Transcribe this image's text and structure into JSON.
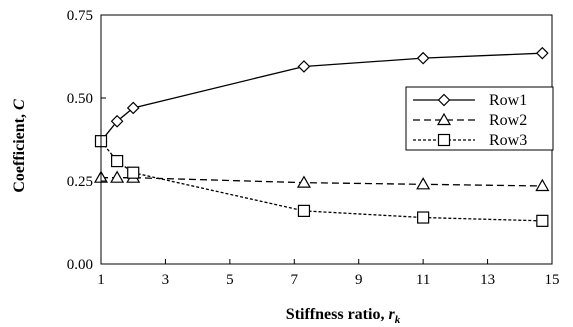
{
  "chart_data": {
    "type": "line",
    "xlabel": "Stiffness ratio, ",
    "xlabel_var": "r",
    "xlabel_sub": "k",
    "ylabel": "Coefficient, ",
    "ylabel_var": "C",
    "xlim": [
      1,
      15
    ],
    "ylim": [
      0,
      0.75
    ],
    "xticks": [
      1,
      3,
      5,
      7,
      9,
      11,
      13,
      15
    ],
    "xtick_labels": [
      "1",
      "3",
      "5",
      "7",
      "9",
      "11",
      "13",
      "15"
    ],
    "yticks": [
      0,
      0.25,
      0.5,
      0.75
    ],
    "ytick_labels": [
      "0.00",
      "0.25",
      "0.50",
      "0.75"
    ],
    "grid": false,
    "legend_position": "right",
    "series": [
      {
        "name": "Row1",
        "marker": "diamond",
        "dash": "solid",
        "x": [
          1,
          1.5,
          2,
          7.3,
          11,
          14.7
        ],
        "y": [
          0.37,
          0.43,
          0.47,
          0.595,
          0.62,
          0.635
        ]
      },
      {
        "name": "Row2",
        "marker": "triangle",
        "dash": "dashed",
        "x": [
          1,
          1.5,
          2,
          7.3,
          11,
          14.7
        ],
        "y": [
          0.26,
          0.26,
          0.26,
          0.245,
          0.24,
          0.235
        ]
      },
      {
        "name": "Row3",
        "marker": "square",
        "dash": "dotted",
        "x": [
          1,
          1.5,
          2,
          7.3,
          11,
          14.7
        ],
        "y": [
          0.37,
          0.31,
          0.275,
          0.16,
          0.14,
          0.13
        ]
      }
    ]
  }
}
